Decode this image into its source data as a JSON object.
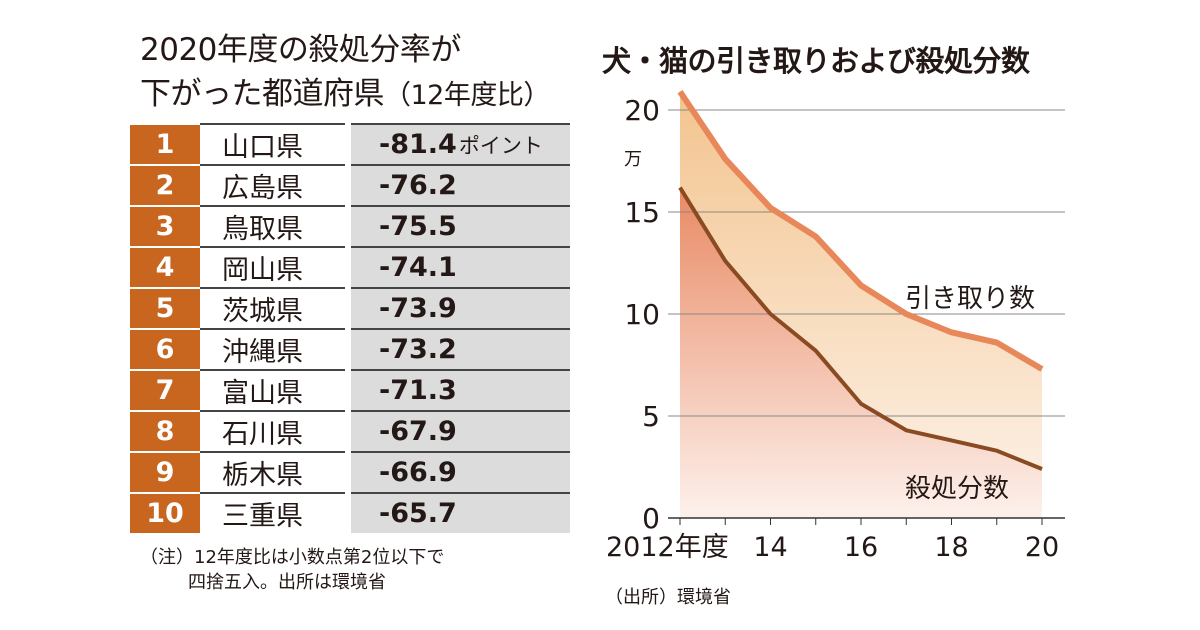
{
  "table": {
    "title_line1": "2020年度の殺処分率が",
    "title_line2": "下がった都道府県",
    "title_suffix": "（12年度比）",
    "unit": "ポイント",
    "rows": [
      {
        "rank": "1",
        "pref": "山口県",
        "value": "-81.4"
      },
      {
        "rank": "2",
        "pref": "広島県",
        "value": "-76.2"
      },
      {
        "rank": "3",
        "pref": "鳥取県",
        "value": "-75.5"
      },
      {
        "rank": "4",
        "pref": "岡山県",
        "value": "-74.1"
      },
      {
        "rank": "5",
        "pref": "茨城県",
        "value": "-73.9"
      },
      {
        "rank": "6",
        "pref": "沖縄県",
        "value": "-73.2"
      },
      {
        "rank": "7",
        "pref": "富山県",
        "value": "-71.3"
      },
      {
        "rank": "8",
        "pref": "石川県",
        "value": "-67.9"
      },
      {
        "rank": "9",
        "pref": "栃木県",
        "value": "-66.9"
      },
      {
        "rank": "10",
        "pref": "三重県",
        "value": "-65.7"
      }
    ],
    "note_line1": "（注）12年度比は小数点第2位以下で",
    "note_line2": "四捨五入。出所は環境省",
    "rank_color": "#c8651f"
  },
  "chart_data": {
    "type": "area",
    "title": "犬・猫の引き取りおよび殺処分数",
    "ylabel": "万",
    "ylim": [
      0,
      20
    ],
    "yticks": [
      "0",
      "5",
      "10",
      "15",
      "20"
    ],
    "x": [
      2012,
      2013,
      2014,
      2015,
      2016,
      2017,
      2018,
      2019,
      2020
    ],
    "xtick_labels": {
      "2012": "2012年度",
      "2014": "14",
      "2016": "16",
      "2018": "18",
      "2020": "20"
    },
    "grid": true,
    "series": [
      {
        "name": "引き取り数",
        "values": [
          20.9,
          17.6,
          15.2,
          13.8,
          11.4,
          10.0,
          9.1,
          8.6,
          7.3
        ],
        "color": "#e8875a"
      },
      {
        "name": "殺処分数",
        "values": [
          16.2,
          12.6,
          10.0,
          8.2,
          5.6,
          4.3,
          3.8,
          3.3,
          2.4
        ],
        "color": "#8a4a22"
      }
    ],
    "source": "（出所）環境省"
  }
}
